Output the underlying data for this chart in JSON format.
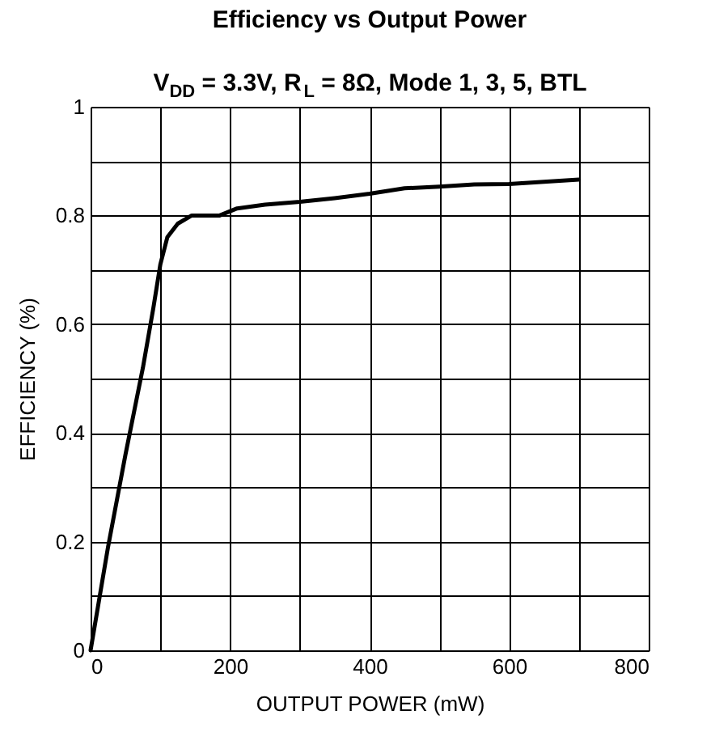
{
  "chart_data": {
    "type": "line",
    "title": "Efficiency vs Output Power",
    "subtitle": "V$_{DD}$ = 3.3V, R$_{L}$ = 8Ω, Mode 1, 3, 5, BTL",
    "xlabel": "OUTPUT POWER (mW)",
    "ylabel": "EFFICIENCY (%)",
    "x": [
      0,
      25,
      50,
      75,
      90,
      100,
      110,
      125,
      145,
      185,
      210,
      250,
      300,
      350,
      400,
      450,
      500,
      550,
      600,
      650,
      700
    ],
    "series": [
      {
        "color": "#000000",
        "values": [
          0,
          0.19,
          0.36,
          0.52,
          0.63,
          0.71,
          0.76,
          0.785,
          0.8,
          0.8,
          0.813,
          0.82,
          0.825,
          0.832,
          0.84,
          0.85,
          0.853,
          0.857,
          0.858,
          0.862,
          0.866
        ]
      }
    ],
    "xlim": [
      0,
      800
    ],
    "ylim": [
      0,
      1
    ],
    "xticks": [
      0,
      {
        "value": 100,
        "label": null
      },
      200,
      {
        "value": 300,
        "label": null
      },
      400,
      {
        "value": 500,
        "label": null
      },
      600,
      {
        "value": 700,
        "label": null
      },
      800
    ],
    "yticks": [
      0,
      {
        "value": 0.1,
        "label": null
      },
      0.2,
      {
        "value": 0.3,
        "label": null
      },
      0.4,
      {
        "value": 0.5,
        "label": null
      },
      0.6,
      {
        "value": 0.7,
        "label": null
      },
      0.8,
      {
        "value": 0.9,
        "label": null
      },
      1
    ],
    "grid": true,
    "marker": "none",
    "line_style": "solid"
  }
}
